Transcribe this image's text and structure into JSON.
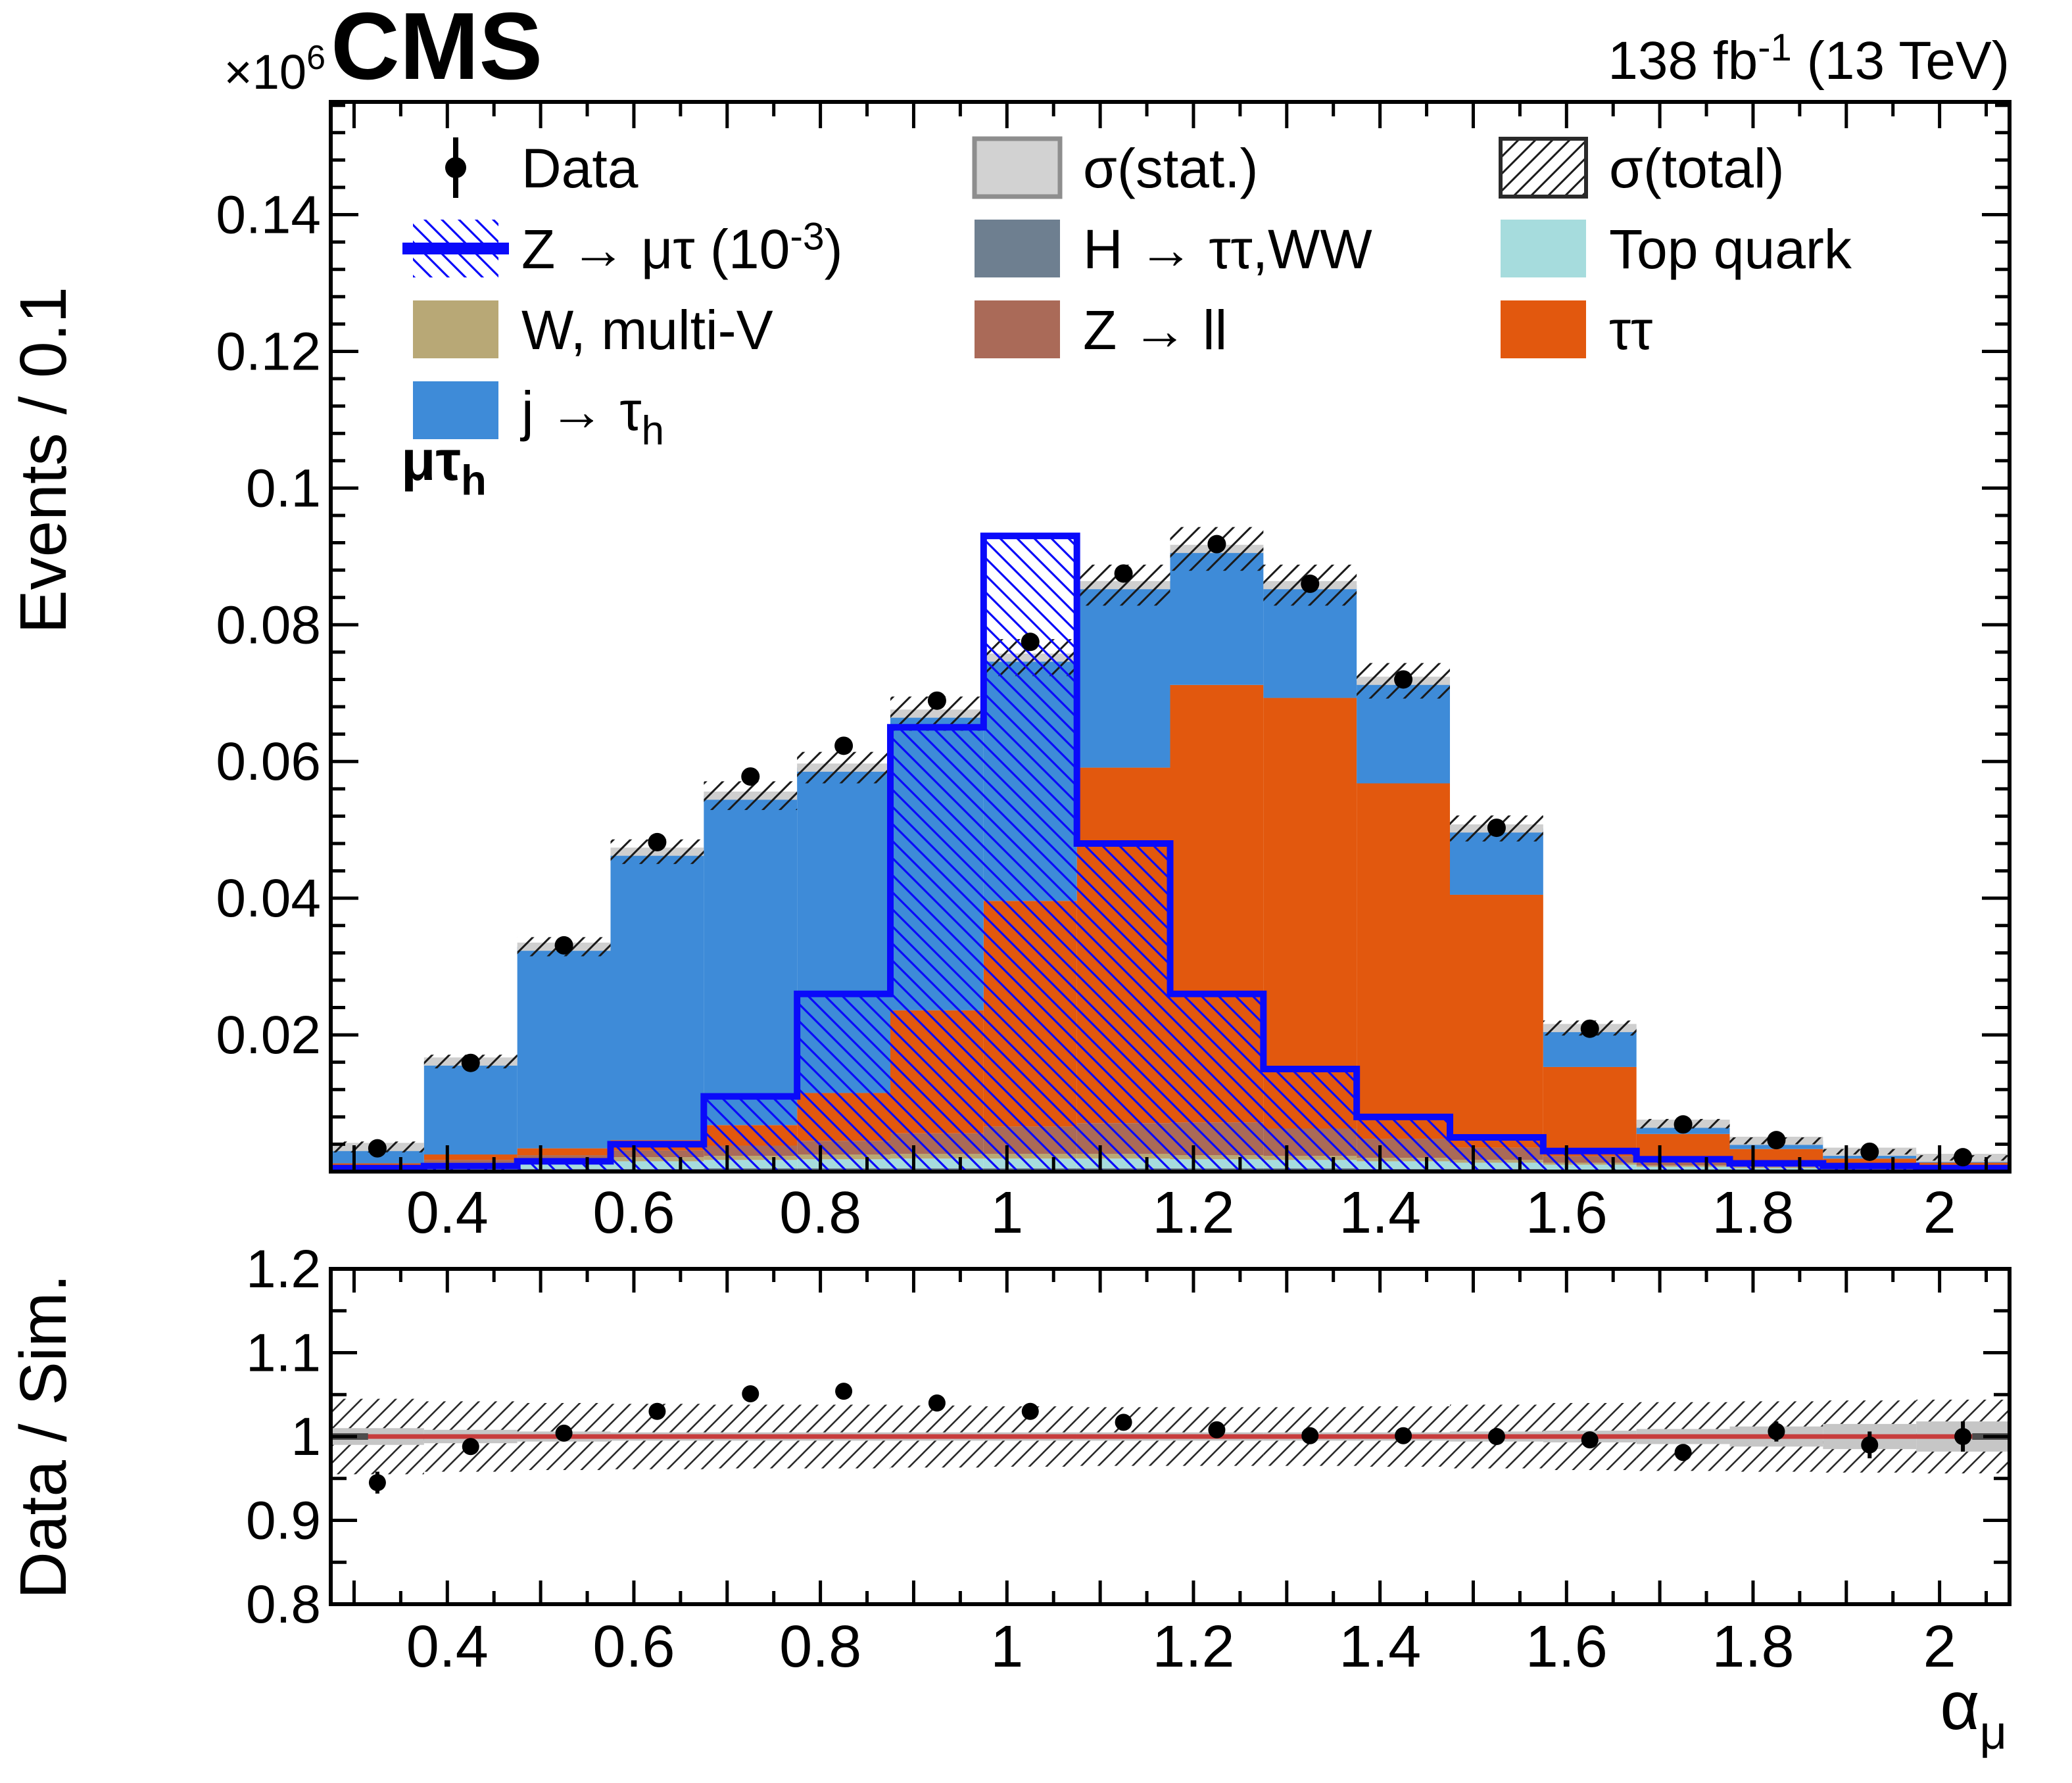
{
  "header": {
    "experiment": "CMS",
    "lumi": {
      "pre": "138 fb",
      "sup": "-1",
      "post": " (13 TeV)"
    },
    "y_multiplier": {
      "pre": "×10",
      "sup": "6"
    }
  },
  "legend": {
    "columns": [
      [
        {
          "id": "data",
          "label": {
            "pre": "Data"
          },
          "swatch": "data"
        },
        {
          "id": "signal",
          "label": {
            "pre": "Z → μτ (10",
            "sup": "-3",
            "post": ")"
          },
          "swatch": "signal"
        },
        {
          "id": "wmultiv",
          "label": {
            "pre": "W, multi-V"
          },
          "swatch": "box",
          "color": "#b8a876"
        },
        {
          "id": "jfake",
          "label": {
            "pre": "j → τ",
            "sub": "h"
          },
          "swatch": "box",
          "color": "#3e8bd8"
        }
      ],
      [
        {
          "id": "stat",
          "label": {
            "pre": "σ(stat.)"
          },
          "swatch": "stat"
        },
        {
          "id": "higgs",
          "label": {
            "pre": "H → ττ,WW"
          },
          "swatch": "box",
          "color": "#6e7f90"
        },
        {
          "id": "zll",
          "label": {
            "pre": "Z → ll"
          },
          "swatch": "box",
          "color": "#aa6a58"
        }
      ],
      [
        {
          "id": "total",
          "label": {
            "pre": "σ(total)"
          },
          "swatch": "hatch"
        },
        {
          "id": "top",
          "label": {
            "pre": "Top quark"
          },
          "swatch": "box",
          "color": "#a6dcdd"
        },
        {
          "id": "tautau",
          "label": {
            "pre": "ττ"
          },
          "swatch": "box",
          "color": "#e2580e"
        }
      ]
    ]
  },
  "chart_data": {
    "type": "stacked-histogram-with-ratio",
    "channel_label": {
      "pre": "μτ",
      "sub": "h"
    },
    "xlabel": {
      "main": "α",
      "sub": "μ"
    },
    "upper": {
      "ylabel": "Events / 0.1",
      "ylim": [
        0,
        0.1565
      ],
      "xlim": [
        0.275,
        2.075
      ],
      "bin_edges": [
        0.275,
        0.375,
        0.475,
        0.575,
        0.675,
        0.775,
        0.875,
        0.975,
        1.075,
        1.175,
        1.275,
        1.375,
        1.475,
        1.575,
        1.675,
        1.775,
        1.875,
        1.975,
        2.075
      ],
      "y_ticks": [
        {
          "v": 0.02,
          "label": "0.02"
        },
        {
          "v": 0.04,
          "label": "0.04"
        },
        {
          "v": 0.06,
          "label": "0.06"
        },
        {
          "v": 0.08,
          "label": "0.08"
        },
        {
          "v": 0.1,
          "label": "0.1"
        },
        {
          "v": 0.12,
          "label": "0.12"
        },
        {
          "v": 0.14,
          "label": "0.14"
        }
      ],
      "x_ticks": [
        {
          "v": 0.4,
          "label": "0.4"
        },
        {
          "v": 0.6,
          "label": "0.6"
        },
        {
          "v": 0.8,
          "label": "0.8"
        },
        {
          "v": 1,
          "label": "1"
        },
        {
          "v": 1.2,
          "label": "1.2"
        },
        {
          "v": 1.4,
          "label": "1.4"
        },
        {
          "v": 1.6,
          "label": "1.6"
        },
        {
          "v": 1.8,
          "label": "1.8"
        },
        {
          "v": 2,
          "label": "2"
        }
      ],
      "series": [
        {
          "name": "H → ττ,WW",
          "color": "#6e7f90",
          "values": [
            0.0002,
            0.0003,
            0.0004,
            0.0004,
            0.0005,
            0.0005,
            0.0005,
            0.0005,
            0.0005,
            0.0005,
            0.0005,
            0.0004,
            0.0004,
            0.0003,
            0.0002,
            0.0002,
            0.0001,
            0.0001
          ]
        },
        {
          "name": "Top quark",
          "color": "#a6dcdd",
          "values": [
            0.0003,
            0.0006,
            0.0009,
            0.0011,
            0.0012,
            0.0013,
            0.0014,
            0.0014,
            0.0014,
            0.0013,
            0.0012,
            0.0011,
            0.0009,
            0.0007,
            0.0005,
            0.0003,
            0.0002,
            0.0002
          ]
        },
        {
          "name": "W, multi-V",
          "color": "#b8a876",
          "values": [
            0.0002,
            0.0004,
            0.0005,
            0.0006,
            0.0006,
            0.0007,
            0.0007,
            0.0007,
            0.0007,
            0.0006,
            0.0006,
            0.0005,
            0.0004,
            0.0003,
            0.0002,
            0.0002,
            0.0001,
            0.0001
          ]
        },
        {
          "name": "Z → ll",
          "color": "#aa6a58",
          "values": [
            0.0002,
            0.0004,
            0.0006,
            0.001,
            0.0015,
            0.002,
            0.003,
            0.004,
            0.0045,
            0.0048,
            0.004,
            0.0028,
            0.0018,
            0.001,
            0.0006,
            0.0004,
            0.0003,
            0.0002
          ]
        },
        {
          "name": "ττ",
          "color": "#e2580e",
          "values": [
            0.0003,
            0.0008,
            0.001,
            0.0015,
            0.003,
            0.007,
            0.018,
            0.033,
            0.052,
            0.064,
            0.063,
            0.052,
            0.037,
            0.013,
            0.004,
            0.0022,
            0.0012,
            0.0007
          ]
        },
        {
          "name": "j → τh",
          "color": "#3e8bd8",
          "values": [
            0.0024,
            0.0136,
            0.0295,
            0.0422,
            0.0482,
            0.0476,
            0.0434,
            0.0356,
            0.0267,
            0.0199,
            0.0165,
            0.015,
            0.0097,
            0.0057,
            0.0015,
            0.0012,
            0.001,
            0.0007
          ]
        }
      ],
      "total": [
        0.0036,
        0.0161,
        0.0329,
        0.0468,
        0.055,
        0.0591,
        0.067,
        0.0752,
        0.0858,
        0.0911,
        0.0858,
        0.0718,
        0.0502,
        0.021,
        0.007,
        0.0045,
        0.0029,
        0.002
      ],
      "stat_halfwidth": 0.0006,
      "stat_color": "#cfcfcf",
      "total_unc_halfwidth": [
        0.0008,
        0.001,
        0.0014,
        0.0018,
        0.0021,
        0.0023,
        0.0025,
        0.0027,
        0.003,
        0.0032,
        0.003,
        0.0026,
        0.0019,
        0.0011,
        0.0007,
        0.0005,
        0.0004,
        0.0004
      ],
      "hatch_color": "#1a1a1a",
      "signal": {
        "name": "Z → μτ (10-3)",
        "color": "#0a0afa",
        "values": [
          0.0005,
          0.0008,
          0.0015,
          0.004,
          0.011,
          0.026,
          0.065,
          0.093,
          0.048,
          0.026,
          0.015,
          0.008,
          0.005,
          0.003,
          0.0018,
          0.0012,
          0.0008,
          0.0005
        ]
      },
      "data": {
        "name": "Data",
        "x": [
          0.325,
          0.425,
          0.525,
          0.625,
          0.725,
          0.825,
          0.925,
          1.025,
          1.125,
          1.225,
          1.325,
          1.425,
          1.525,
          1.625,
          1.725,
          1.825,
          1.925,
          2.025
        ],
        "y": [
          0.0034,
          0.0159,
          0.0331,
          0.0482,
          0.0578,
          0.0623,
          0.0689,
          0.0775,
          0.0875,
          0.0918,
          0.086,
          0.072,
          0.0503,
          0.0209,
          0.0069,
          0.0046,
          0.0029,
          0.0021
        ],
        "yerr": 0.0004
      }
    },
    "ratio": {
      "ylabel": "Data / Sim.",
      "ylim": [
        0.8,
        1.2
      ],
      "y_ticks": [
        {
          "v": 0.8,
          "label": "0.8"
        },
        {
          "v": 0.9,
          "label": "0.9"
        },
        {
          "v": 1,
          "label": "1"
        },
        {
          "v": 1.1,
          "label": "1.1"
        },
        {
          "v": 1.2,
          "label": "1.2"
        }
      ],
      "refline": 1,
      "refline_color": "#c83c3c",
      "values": [
        0.945,
        0.988,
        1.004,
        1.03,
        1.051,
        1.054,
        1.04,
        1.03,
        1.017,
        1.008,
        1.001,
        1.001,
        1.0,
        0.996,
        0.981,
        1.006,
        0.99,
        1.0
      ],
      "errors": [
        0.013,
        0.006,
        0.004,
        0.004,
        0.004,
        0.004,
        0.004,
        0.004,
        0.003,
        0.003,
        0.003,
        0.003,
        0.004,
        0.005,
        0.008,
        0.012,
        0.016,
        0.018
      ],
      "band_halfwidth": [
        0.045,
        0.042,
        0.04,
        0.039,
        0.038,
        0.038,
        0.037,
        0.036,
        0.035,
        0.035,
        0.035,
        0.036,
        0.038,
        0.04,
        0.041,
        0.042,
        0.043,
        0.044
      ],
      "stat_halfwidth": [
        0.01,
        0.008,
        0.006,
        0.005,
        0.005,
        0.005,
        0.005,
        0.005,
        0.005,
        0.005,
        0.005,
        0.005,
        0.006,
        0.007,
        0.009,
        0.012,
        0.015,
        0.018
      ],
      "stat_color": "#c6c6c6",
      "dark_edge_segments": [
        [
          0.275,
          0.315
        ],
        [
          2.035,
          2.075
        ]
      ]
    }
  }
}
